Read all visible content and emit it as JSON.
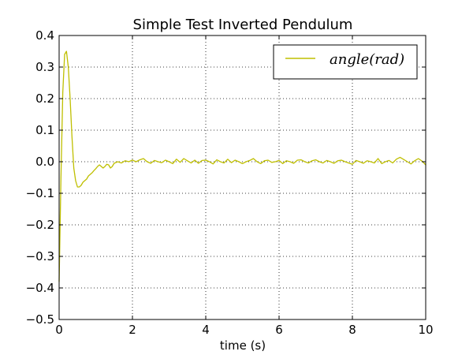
{
  "chart_data": {
    "type": "line",
    "title": "Simple Test Inverted Pendulum",
    "xlabel": "time (s)",
    "ylabel": "",
    "xlim": [
      0,
      10
    ],
    "ylim": [
      -0.5,
      0.4
    ],
    "xticks": [
      0,
      2,
      4,
      6,
      8,
      10
    ],
    "xtick_labels": [
      "0",
      "2",
      "4",
      "6",
      "8",
      "10"
    ],
    "yticks": [
      0.4,
      0.3,
      0.2,
      0.1,
      0.0,
      -0.1,
      -0.2,
      -0.3,
      -0.4,
      -0.5
    ],
    "ytick_labels": [
      "0.4",
      "0.3",
      "0.2",
      "0.1",
      "0.0",
      "−0.1",
      "−0.2",
      "−0.3",
      "−0.4",
      "−0.5"
    ],
    "grid": true,
    "grid_style": "dotted",
    "legend_position": "top-right",
    "series": [
      {
        "name": "angle(rad)",
        "color": "#bfbf00",
        "x": [
          0.0,
          0.05,
          0.1,
          0.15,
          0.2,
          0.25,
          0.3,
          0.35,
          0.4,
          0.45,
          0.5,
          0.55,
          0.6,
          0.65,
          0.7,
          0.75,
          0.8,
          0.85,
          0.9,
          0.95,
          1.0,
          1.05,
          1.1,
          1.15,
          1.2,
          1.25,
          1.3,
          1.35,
          1.4,
          1.45,
          1.5,
          1.6,
          1.7,
          1.8,
          1.9,
          2.0,
          2.1,
          2.2,
          2.3,
          2.4,
          2.5,
          2.6,
          2.7,
          2.8,
          2.9,
          3.0,
          3.1,
          3.2,
          3.3,
          3.4,
          3.5,
          3.6,
          3.7,
          3.8,
          3.9,
          4.0,
          4.1,
          4.2,
          4.3,
          4.4,
          4.5,
          4.6,
          4.7,
          4.8,
          4.9,
          5.0,
          5.1,
          5.2,
          5.3,
          5.4,
          5.5,
          5.6,
          5.7,
          5.8,
          5.9,
          6.0,
          6.1,
          6.2,
          6.3,
          6.4,
          6.5,
          6.6,
          6.7,
          6.8,
          6.9,
          7.0,
          7.1,
          7.2,
          7.3,
          7.4,
          7.5,
          7.6,
          7.7,
          7.8,
          7.9,
          8.0,
          8.1,
          8.2,
          8.3,
          8.4,
          8.5,
          8.6,
          8.7,
          8.8,
          8.9,
          9.0,
          9.1,
          9.2,
          9.3,
          9.4,
          9.5,
          9.6,
          9.7,
          9.8,
          9.9,
          10.0
        ],
        "values": [
          -0.38,
          -0.05,
          0.22,
          0.34,
          0.35,
          0.3,
          0.2,
          0.08,
          -0.02,
          -0.06,
          -0.08,
          -0.08,
          -0.075,
          -0.065,
          -0.06,
          -0.055,
          -0.045,
          -0.04,
          -0.035,
          -0.028,
          -0.022,
          -0.015,
          -0.01,
          -0.015,
          -0.02,
          -0.015,
          -0.008,
          -0.01,
          -0.02,
          -0.015,
          -0.005,
          0.0,
          -0.004,
          0.003,
          0.0,
          0.005,
          0.0,
          0.006,
          0.01,
          0.0,
          -0.005,
          0.004,
          0.0,
          -0.003,
          0.005,
          0.0,
          -0.006,
          0.008,
          -0.002,
          0.01,
          0.003,
          -0.004,
          0.005,
          -0.005,
          0.004,
          0.005,
          0.0,
          -0.007,
          0.006,
          0.0,
          -0.004,
          0.008,
          -0.003,
          0.005,
          0.0,
          -0.006,
          0.0,
          0.004,
          0.01,
          0.0,
          -0.006,
          0.003,
          0.005,
          -0.002,
          0.0,
          0.004,
          -0.006,
          0.003,
          0.0,
          -0.005,
          0.005,
          0.006,
          0.0,
          -0.004,
          0.003,
          0.006,
          0.0,
          -0.004,
          0.004,
          0.0,
          -0.005,
          0.003,
          0.005,
          0.0,
          -0.004,
          -0.008,
          0.004,
          0.0,
          -0.005,
          0.003,
          0.0,
          -0.004,
          0.01,
          -0.006,
          0.0,
          0.004,
          -0.004,
          0.008,
          0.014,
          0.007,
          0.0,
          -0.007,
          0.003,
          0.01,
          0.002,
          -0.01
        ]
      }
    ]
  }
}
